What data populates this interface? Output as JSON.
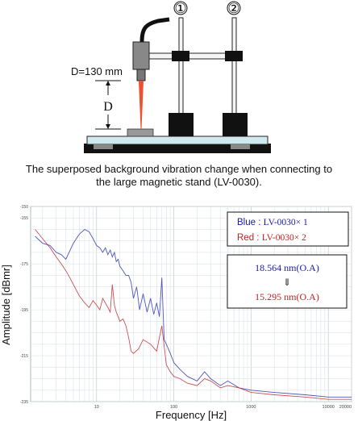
{
  "diagram": {
    "stand_labels": [
      "①",
      "②"
    ],
    "distance_label": "D=130 mm",
    "d_marker": "D"
  },
  "caption": {
    "line1": "The superposed background vibration change when connecting to",
    "line2": "the large magnetic stand (LV-0030)."
  },
  "chart_data": {
    "type": "line",
    "xlabel": "Frequency [Hz]",
    "ylabel": "Amplitude [dBmr]",
    "xscale": "log",
    "xlim": [
      1.4,
      20000
    ],
    "ylim": [
      -235,
      -150
    ],
    "y_ticks": [
      -155,
      -175,
      -195,
      -215,
      -235
    ],
    "y_tick_labels": [
      "-155",
      "-175",
      "-195",
      "-215",
      "-235"
    ],
    "y_top_label": "-150",
    "x_ticks": [
      10,
      100,
      1000,
      10000,
      20000
    ],
    "x_tick_labels": [
      "10",
      "100",
      "1000",
      "10000",
      "20000"
    ],
    "grid": true,
    "legend": {
      "position": "top-right",
      "entries": [
        {
          "prefix": "Blue : ",
          "text": "LV-0030× 1",
          "color": "#1a1aa8"
        },
        {
          "prefix": "Red : ",
          "text": "LV-0030× 2",
          "color": "#c81e1e"
        }
      ]
    },
    "annotation": {
      "value1": "18.564 nm(O.A)",
      "arrow": "⇓",
      "value2": "15.295 nm(O.A)",
      "color1": "#1a1aa8",
      "color2": "#c81e1e"
    },
    "series": [
      {
        "name": "Blue : LV-0030× 1",
        "color": "#2e3ab0",
        "x": [
          1.6,
          2,
          2.5,
          3,
          3.5,
          4,
          5,
          6,
          7,
          8,
          9,
          10,
          11,
          12,
          13,
          14,
          15,
          16,
          17,
          18,
          19,
          20,
          22,
          24,
          26,
          28,
          30,
          33,
          36,
          40,
          45,
          50,
          55,
          60,
          65,
          70,
          75,
          80,
          90,
          100,
          120,
          150,
          200,
          250,
          300,
          400,
          500,
          700,
          1000,
          2000,
          5000,
          10000,
          20000
        ],
        "y": [
          -163,
          -166,
          -167,
          -170,
          -171,
          -173,
          -166,
          -162,
          -160,
          -161,
          -164,
          -167,
          -168,
          -170,
          -168,
          -171,
          -169,
          -172,
          -170,
          -174,
          -173,
          -176,
          -178,
          -180,
          -180,
          -183,
          -190,
          -185,
          -195,
          -188,
          -196,
          -190,
          -197,
          -192,
          -198,
          -181,
          -208,
          -210,
          -214,
          -218,
          -221,
          -224,
          -226,
          -222,
          -225,
          -228,
          -226,
          -229,
          -230,
          -231,
          -232,
          -233,
          -233
        ]
      },
      {
        "name": "Red : LV-0030× 2",
        "color": "#c0323a",
        "x": [
          1.6,
          2,
          2.5,
          3,
          3.5,
          4,
          4.5,
          5,
          6,
          7,
          8,
          9,
          10,
          11,
          12,
          13,
          14,
          15,
          16,
          17,
          18,
          19,
          20,
          22,
          24,
          26,
          28,
          30,
          35,
          40,
          50,
          60,
          70,
          80,
          90,
          100,
          120,
          150,
          200,
          250,
          300,
          400,
          500,
          700,
          1000,
          2000,
          5000,
          10000,
          20000
        ],
        "y": [
          -160,
          -164,
          -168,
          -172,
          -175,
          -178,
          -181,
          -184,
          -189,
          -192,
          -194,
          -191,
          -193,
          -195,
          -190,
          -192,
          -194,
          -196,
          -184,
          -193,
          -196,
          -198,
          -200,
          -199,
          -202,
          -207,
          -213,
          -214,
          -212,
          -208,
          -210,
          -213,
          -202,
          -219,
          -222,
          -224,
          -225,
          -227,
          -228,
          -225,
          -226,
          -229,
          -228,
          -229,
          -231,
          -232,
          -233,
          -234,
          -234
        ]
      }
    ]
  }
}
